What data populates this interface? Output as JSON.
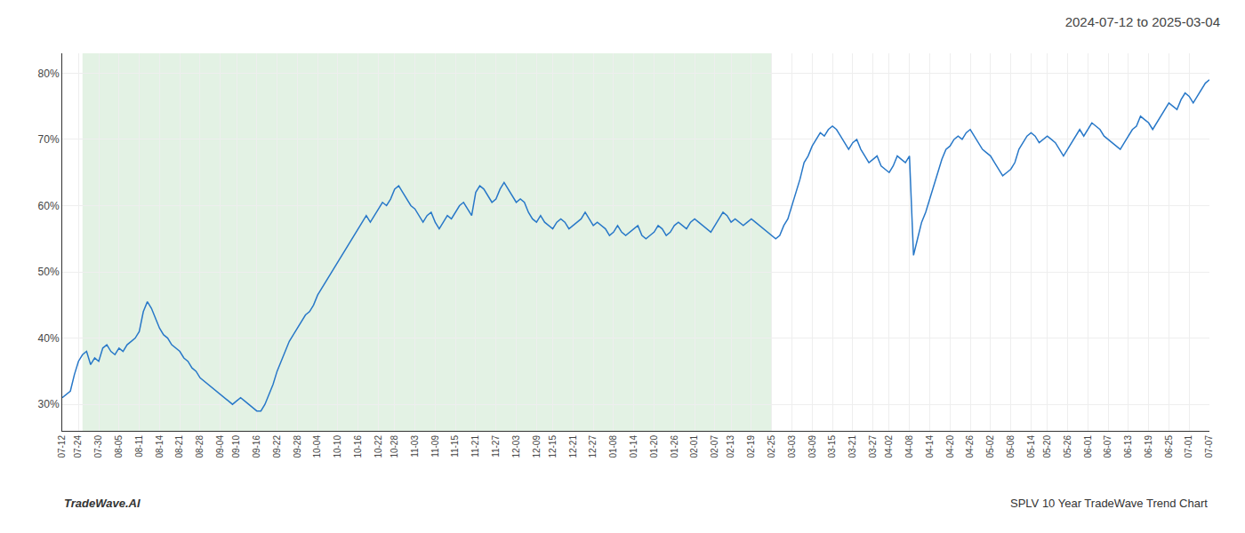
{
  "chart_data": {
    "type": "line",
    "title": "2024-07-12 to 2025-03-04",
    "annotations": [
      "TradeWave.AI",
      "SPLV 10 Year TradeWave Trend Chart"
    ],
    "color": "#2878c8",
    "grid": true,
    "shade": {
      "from": 5,
      "to": 175,
      "color": "#c8e6c9"
    },
    "ylim": [
      26,
      83
    ],
    "yticks": [
      {
        "value": 30,
        "label": "30%"
      },
      {
        "value": 40,
        "label": "40%"
      },
      {
        "value": 50,
        "label": "50%"
      },
      {
        "value": 60,
        "label": "60%"
      },
      {
        "value": 70,
        "label": "70%"
      },
      {
        "value": 80,
        "label": "80%"
      }
    ],
    "categories": [
      "07-12",
      null,
      null,
      null,
      "07-24",
      null,
      null,
      null,
      null,
      "07-30",
      null,
      null,
      null,
      null,
      "08-05",
      null,
      null,
      null,
      null,
      "08-11",
      null,
      null,
      null,
      null,
      "08-14",
      null,
      null,
      null,
      null,
      "08-21",
      null,
      null,
      null,
      null,
      "08-28",
      null,
      null,
      null,
      null,
      "09-04",
      null,
      null,
      null,
      "09-10",
      null,
      null,
      null,
      null,
      "09-16",
      null,
      null,
      null,
      null,
      "09-22",
      null,
      null,
      null,
      null,
      "09-28",
      null,
      null,
      null,
      null,
      "10-04",
      null,
      null,
      null,
      null,
      "10-10",
      null,
      null,
      null,
      null,
      "10-16",
      null,
      null,
      null,
      null,
      "10-22",
      null,
      null,
      null,
      "10-28",
      null,
      null,
      null,
      null,
      "11-03",
      null,
      null,
      null,
      null,
      "11-09",
      null,
      null,
      null,
      null,
      "11-15",
      null,
      null,
      null,
      null,
      "11-21",
      null,
      null,
      null,
      null,
      "11-27",
      null,
      null,
      null,
      null,
      "12-03",
      null,
      null,
      null,
      null,
      "12-09",
      null,
      null,
      null,
      "12-15",
      null,
      null,
      null,
      null,
      "12-21",
      null,
      null,
      null,
      null,
      "12-27",
      null,
      null,
      null,
      null,
      "01-08",
      null,
      null,
      null,
      null,
      "01-14",
      null,
      null,
      null,
      null,
      "01-20",
      null,
      null,
      null,
      null,
      "01-26",
      null,
      null,
      null,
      null,
      "02-01",
      null,
      null,
      null,
      null,
      "02-07",
      null,
      null,
      null,
      "02-13",
      null,
      null,
      null,
      null,
      "02-19",
      null,
      null,
      null,
      null,
      "02-25",
      null,
      null,
      null,
      null,
      "03-03",
      null,
      null,
      null,
      null,
      "03-09",
      null,
      null,
      null,
      null,
      "03-15",
      null,
      null,
      null,
      null,
      "03-21",
      null,
      null,
      null,
      null,
      "03-27",
      null,
      null,
      null,
      "04-02",
      null,
      null,
      null,
      null,
      "04-08",
      null,
      null,
      null,
      null,
      "04-14",
      null,
      null,
      null,
      null,
      "04-20",
      null,
      null,
      null,
      null,
      "04-26",
      null,
      null,
      null,
      null,
      "05-02",
      null,
      null,
      null,
      null,
      "05-08",
      null,
      null,
      null,
      null,
      "05-14",
      null,
      null,
      null,
      "05-20",
      null,
      null,
      null,
      null,
      "05-26",
      null,
      null,
      null,
      null,
      "06-01",
      null,
      null,
      null,
      null,
      "06-07",
      null,
      null,
      null,
      null,
      "06-13",
      null,
      null,
      null,
      null,
      "06-19",
      null,
      null,
      null,
      null,
      "06-25",
      null,
      null,
      null,
      null,
      "07-01",
      null,
      null,
      null,
      null,
      "07-07"
    ],
    "values": [
      31.0,
      31.5,
      32.0,
      34.5,
      36.5,
      37.5,
      38.0,
      36.0,
      37.0,
      36.5,
      38.5,
      39.0,
      38.0,
      37.5,
      38.5,
      38.0,
      39.0,
      39.5,
      40.0,
      41.0,
      44.0,
      45.5,
      44.5,
      43.0,
      41.5,
      40.5,
      40.0,
      39.0,
      38.5,
      38.0,
      37.0,
      36.5,
      35.5,
      35.0,
      34.0,
      33.5,
      33.0,
      32.5,
      32.0,
      31.5,
      31.0,
      30.5,
      30.0,
      30.5,
      31.0,
      30.5,
      30.0,
      29.5,
      29.0,
      29.0,
      30.0,
      31.5,
      33.0,
      35.0,
      36.5,
      38.0,
      39.5,
      40.5,
      41.5,
      42.5,
      43.5,
      44.0,
      45.0,
      46.5,
      47.5,
      48.5,
      49.5,
      50.5,
      51.5,
      52.5,
      53.5,
      54.5,
      55.5,
      56.5,
      57.5,
      58.5,
      57.5,
      58.5,
      59.5,
      60.5,
      60.0,
      61.0,
      62.5,
      63.0,
      62.0,
      61.0,
      60.0,
      59.5,
      58.5,
      57.5,
      58.5,
      59.0,
      57.5,
      56.5,
      57.5,
      58.5,
      58.0,
      59.0,
      60.0,
      60.5,
      59.5,
      58.5,
      62.0,
      63.0,
      62.5,
      61.5,
      60.5,
      61.0,
      62.5,
      63.5,
      62.5,
      61.5,
      60.5,
      61.0,
      60.5,
      59.0,
      58.0,
      57.5,
      58.5,
      57.5,
      57.0,
      56.5,
      57.5,
      58.0,
      57.5,
      56.5,
      57.0,
      57.5,
      58.0,
      59.0,
      58.0,
      57.0,
      57.5,
      57.0,
      56.5,
      55.5,
      56.0,
      57.0,
      56.0,
      55.5,
      56.0,
      56.5,
      57.0,
      55.5,
      55.0,
      55.5,
      56.0,
      57.0,
      56.5,
      55.5,
      56.0,
      57.0,
      57.5,
      57.0,
      56.5,
      57.5,
      58.0,
      57.5,
      57.0,
      56.5,
      56.0,
      57.0,
      58.0,
      59.0,
      58.5,
      57.5,
      58.0,
      57.5,
      57.0,
      57.5,
      58.0,
      57.5,
      57.0,
      56.5,
      56.0,
      55.5,
      55.0,
      55.5,
      57.0,
      58.0,
      60.0,
      62.0,
      64.0,
      66.5,
      67.5,
      69.0,
      70.0,
      71.0,
      70.5,
      71.5,
      72.0,
      71.5,
      70.5,
      69.5,
      68.5,
      69.5,
      70.0,
      68.5,
      67.5,
      66.5,
      67.0,
      67.5,
      66.0,
      65.5,
      65.0,
      66.0,
      67.5,
      67.0,
      66.5,
      67.5,
      52.5,
      55.0,
      57.5,
      59.0,
      61.0,
      63.0,
      65.0,
      67.0,
      68.5,
      69.0,
      70.0,
      70.5,
      70.0,
      71.0,
      71.5,
      70.5,
      69.5,
      68.5,
      68.0,
      67.5,
      66.5,
      65.5,
      64.5,
      65.0,
      65.5,
      66.5,
      68.5,
      69.5,
      70.5,
      71.0,
      70.5,
      69.5,
      70.0,
      70.5,
      70.0,
      69.5,
      68.5,
      67.5,
      68.5,
      69.5,
      70.5,
      71.5,
      70.5,
      71.5,
      72.5,
      72.0,
      71.5,
      70.5,
      70.0,
      69.5,
      69.0,
      68.5,
      69.5,
      70.5,
      71.5,
      72.0,
      73.5,
      73.0,
      72.5,
      71.5,
      72.5,
      73.5,
      74.5,
      75.5,
      75.0,
      74.5,
      76.0,
      77.0,
      76.5,
      75.5,
      76.5,
      77.5,
      78.5,
      79.0
    ]
  }
}
